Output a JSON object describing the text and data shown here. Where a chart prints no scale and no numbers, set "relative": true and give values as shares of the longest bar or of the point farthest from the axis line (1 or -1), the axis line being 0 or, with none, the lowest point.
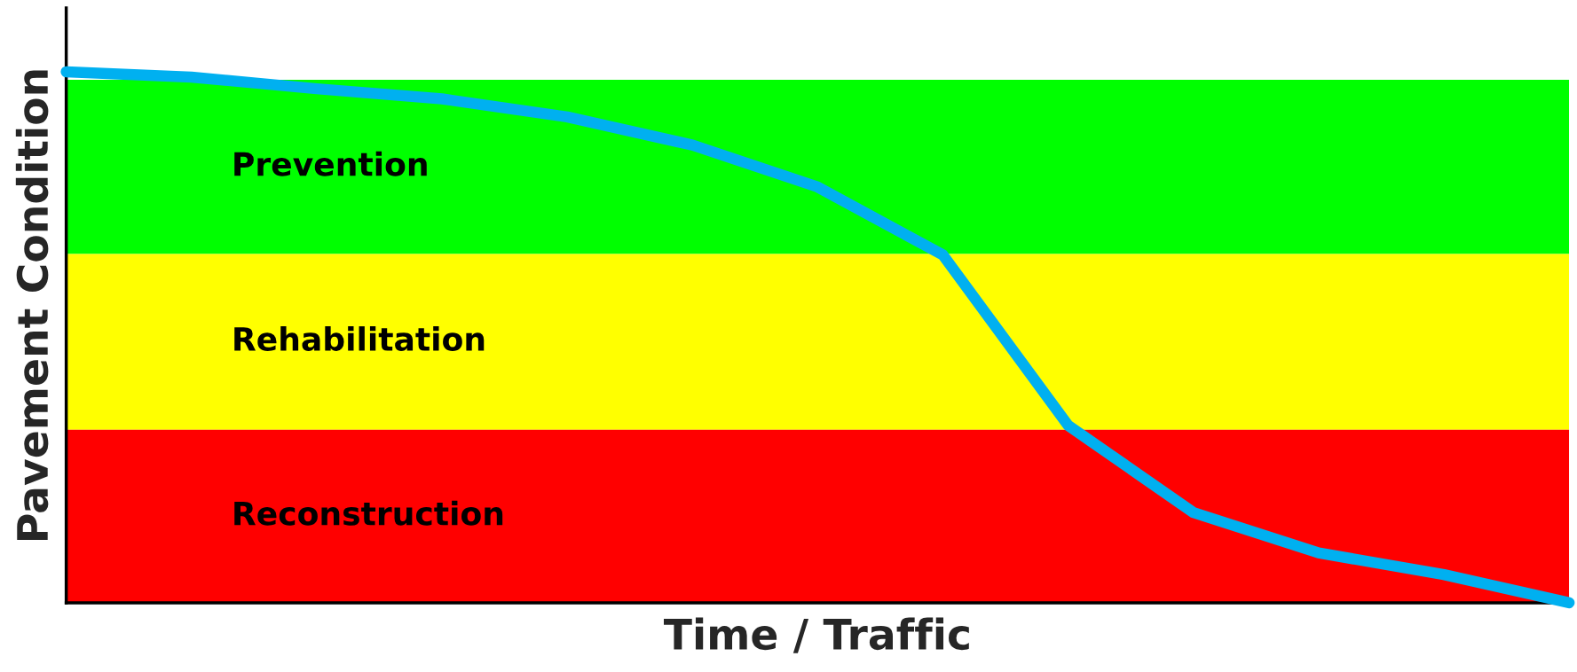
{
  "chart_data": {
    "type": "line",
    "relative": true,
    "xlabel": "Time / Traffic",
    "ylabel": "Pavement Condition",
    "categories": [
      null,
      null,
      null,
      null,
      null,
      null,
      null,
      null,
      null,
      null,
      null,
      null,
      null
    ],
    "series": [
      {
        "color": "#00b0f0",
        "values": [
          1.0,
          0.99,
          0.968,
          0.949,
          0.915,
          0.862,
          0.783,
          0.655,
          0.334,
          0.17,
          0.094,
          0.053,
          0.0
        ]
      }
    ],
    "bands": [
      {
        "axis": "y",
        "from": 0.657,
        "to": 0.985,
        "label": "Prevention",
        "color": "#00ff00"
      },
      {
        "axis": "y",
        "from": 0.326,
        "to": 0.657,
        "label": "Rehabilitation",
        "color": "#ffff00"
      },
      {
        "axis": "y",
        "from": 0.0,
        "to": 0.326,
        "label": "Reconstruction",
        "color": "#ff0000"
      }
    ],
    "legend": false
  }
}
